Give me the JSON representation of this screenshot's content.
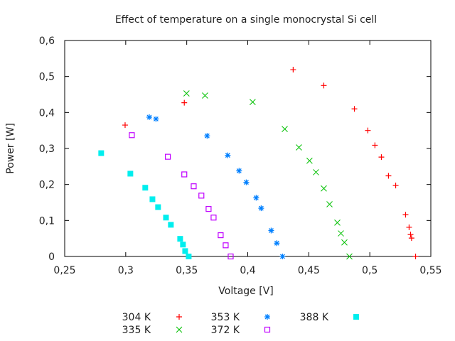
{
  "chart_data": {
    "type": "scatter",
    "title": "Effect of temperature on a single monocrystal Si cell",
    "xlabel": "Voltage [V]",
    "ylabel": "Power [W]",
    "xlim": [
      0.25,
      0.55
    ],
    "ylim": [
      0,
      0.6
    ],
    "xticks": [
      0.25,
      0.3,
      0.35,
      0.4,
      0.45,
      0.5,
      0.55
    ],
    "xtick_labels": [
      "0,25",
      "0,3",
      "0,35",
      "0,4",
      "0,45",
      "0,5",
      "0,55"
    ],
    "yticks": [
      0,
      0.1,
      0.2,
      0.3,
      0.4,
      0.5,
      0.6
    ],
    "ytick_labels": [
      "0",
      "0,1",
      "0,2",
      "0,3",
      "0,4",
      "0,5",
      "0,6"
    ],
    "grid": false,
    "legend": "bottom",
    "series": [
      {
        "name": "304 K",
        "color": "#ff0000",
        "marker": "plus",
        "x": [
          0.2995,
          0.348,
          0.4372,
          0.4623,
          0.4874,
          0.4984,
          0.5042,
          0.5095,
          0.5153,
          0.5212,
          0.5293,
          0.5322,
          0.5334,
          0.5342,
          0.5375
        ],
        "y": [
          0.365,
          0.427,
          0.519,
          0.475,
          0.41,
          0.35,
          0.309,
          0.276,
          0.224,
          0.197,
          0.116,
          0.081,
          0.061,
          0.051,
          0
        ]
      },
      {
        "name": "335 K",
        "color": "#00c000",
        "marker": "cross",
        "x": [
          0.3498,
          0.365,
          0.404,
          0.4303,
          0.4419,
          0.4506,
          0.4559,
          0.4623,
          0.467,
          0.4734,
          0.4763,
          0.4792,
          0.4833
        ],
        "y": [
          0.453,
          0.447,
          0.429,
          0.354,
          0.303,
          0.266,
          0.234,
          0.189,
          0.145,
          0.094,
          0.064,
          0.039,
          0
        ]
      },
      {
        "name": "353 K",
        "color": "#0080ff",
        "marker": "star",
        "x": [
          0.3193,
          0.3248,
          0.3667,
          0.3836,
          0.3929,
          0.3988,
          0.4069,
          0.411,
          0.4192,
          0.4238,
          0.4285
        ],
        "y": [
          0.387,
          0.382,
          0.335,
          0.281,
          0.238,
          0.206,
          0.163,
          0.134,
          0.072,
          0.037,
          0
        ]
      },
      {
        "name": "372 K",
        "color": "#c000ff",
        "marker": "open-square",
        "x": [
          0.305,
          0.3345,
          0.348,
          0.3557,
          0.362,
          0.3679,
          0.372,
          0.3778,
          0.3819,
          0.386
        ],
        "y": [
          0.337,
          0.277,
          0.228,
          0.195,
          0.169,
          0.132,
          0.108,
          0.059,
          0.031,
          0
        ]
      },
      {
        "name": "388 K",
        "color": "#00eeee",
        "marker": "filled-square",
        "x": [
          0.2799,
          0.3038,
          0.316,
          0.3219,
          0.3265,
          0.333,
          0.337,
          0.3446,
          0.3469,
          0.3487,
          0.3516
        ],
        "y": [
          0.287,
          0.23,
          0.191,
          0.159,
          0.137,
          0.108,
          0.088,
          0.049,
          0.033,
          0.015,
          0
        ]
      }
    ]
  }
}
